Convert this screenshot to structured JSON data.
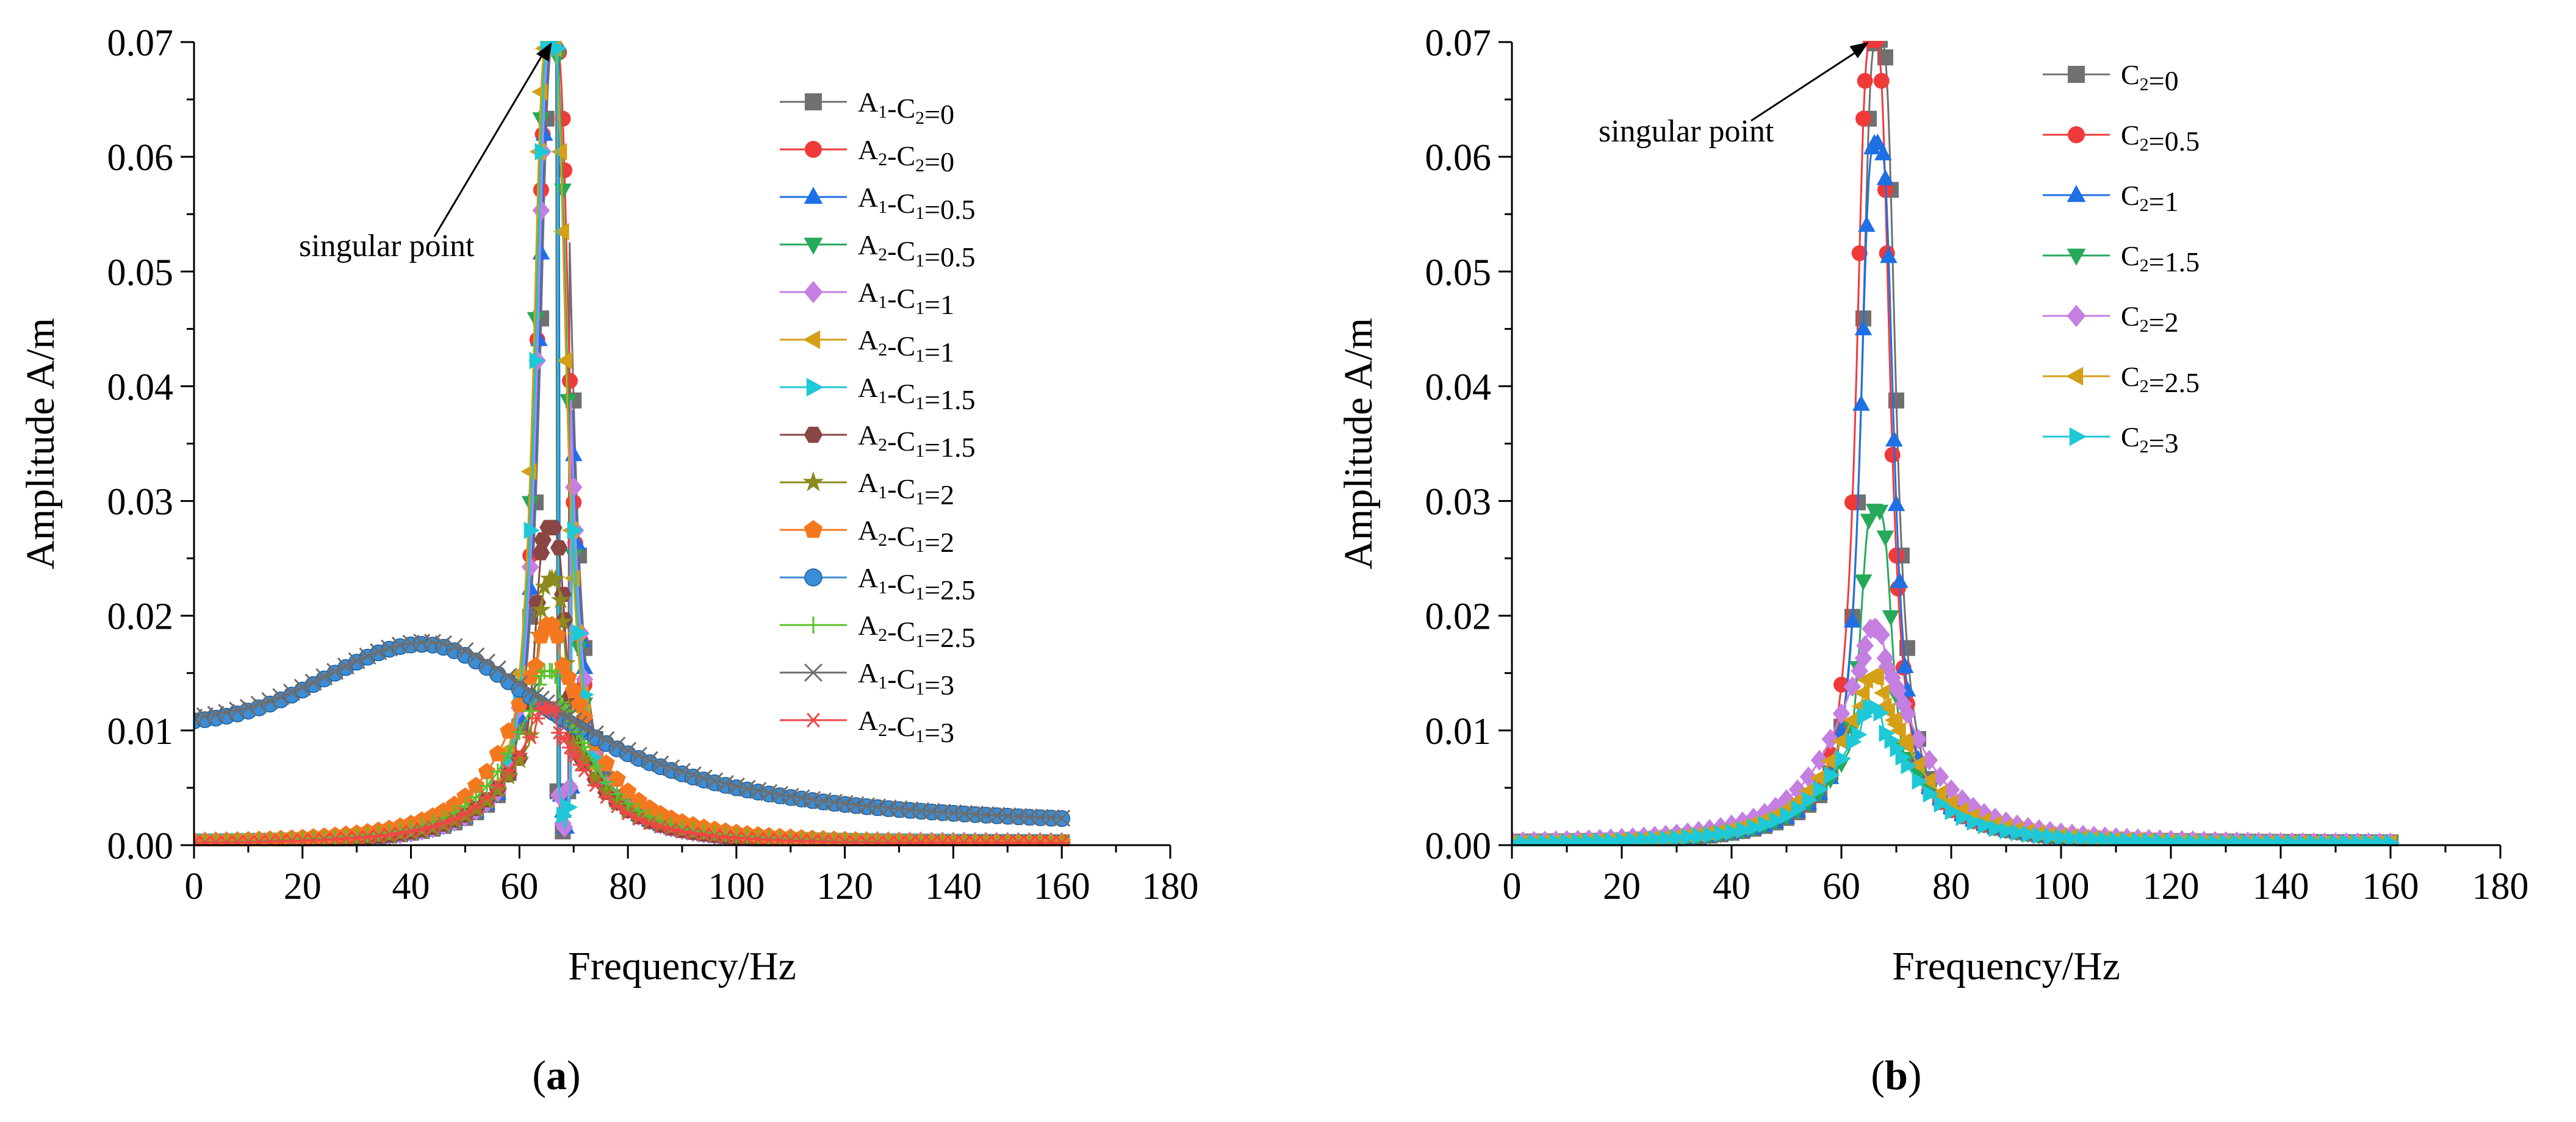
{
  "chart_data": [
    {
      "panel_label": "a",
      "type": "line",
      "xlabel": "Frequency/Hz",
      "ylabel": "Amplitude A/m",
      "xlim": [
        0,
        180
      ],
      "ylim": [
        0,
        0.07
      ],
      "xticks": [
        "0",
        "20",
        "40",
        "60",
        "80",
        "100",
        "120",
        "140",
        "160",
        "180"
      ],
      "yticks": [
        "0.00",
        "0.01",
        "0.02",
        "0.03",
        "0.04",
        "0.05",
        "0.06",
        "0.07"
      ],
      "annotation": {
        "text": "singular point",
        "arrow_to": [
          66,
          0.07
        ]
      },
      "legend_location": "upper-right",
      "series": [
        {
          "name": "A1-C2=0",
          "legend": {
            "p": "A",
            "ps": "1",
            "m": "-C",
            "ms": "2",
            "s": "=0"
          },
          "color": "#707070",
          "marker": "square",
          "kind": "res",
          "res_f": 66.8,
          "peak": 0.07,
          "anti_f": 68.0
        },
        {
          "name": "A2-C2=0",
          "legend": {
            "p": "A",
            "ps": "2",
            "m": "-C",
            "ms": "2",
            "s": "=0"
          },
          "color": "#f03a3a",
          "marker": "circle",
          "kind": "res",
          "res_f": 66.2,
          "peak": 0.07
        },
        {
          "name": "A1-C1=0.5",
          "legend": {
            "p": "A",
            "ps": "1",
            "m": "-C",
            "ms": "1",
            "s": "=0.5"
          },
          "color": "#1f6fe5",
          "marker": "triangle-up",
          "kind": "res",
          "res_f": 66.5,
          "peak": 0.07,
          "anti_f": 68.5
        },
        {
          "name": "A2-C1=0.5",
          "legend": {
            "p": "A",
            "ps": "2",
            "m": "-C",
            "ms": "1",
            "s": "=0.5"
          },
          "color": "#26a95a",
          "marker": "triangle-down",
          "kind": "res",
          "res_f": 65.8,
          "peak": 0.07
        },
        {
          "name": "A1-C1=1",
          "legend": {
            "p": "A",
            "ps": "1",
            "m": "-C",
            "ms": "1",
            "s": "=1"
          },
          "color": "#c57fe0",
          "marker": "diamond",
          "kind": "res",
          "res_f": 66.3,
          "peak": 0.07,
          "anti_f": 68.2
        },
        {
          "name": "A2-C1=1",
          "legend": {
            "p": "A",
            "ps": "2",
            "m": "-C",
            "ms": "1",
            "s": "=1"
          },
          "color": "#d4a017",
          "marker": "triangle-left",
          "kind": "res",
          "res_f": 65.6,
          "peak": 0.07
        },
        {
          "name": "A1-C1=1.5",
          "legend": {
            "p": "A",
            "ps": "1",
            "m": "-C",
            "ms": "1",
            "s": "=1.5"
          },
          "color": "#1ec8d6",
          "marker": "triangle-right",
          "kind": "res",
          "res_f": 66.0,
          "peak": 0.07,
          "anti_f": 68.4
        },
        {
          "name": "A2-C1=1.5",
          "legend": {
            "p": "A",
            "ps": "2",
            "m": "-C",
            "ms": "1",
            "s": "=1.5"
          },
          "color": "#8a4545",
          "marker": "hexagon",
          "kind": "res",
          "res_f": 65.7,
          "peak": 0.0275
        },
        {
          "name": "A1-C1=2",
          "legend": {
            "p": "A",
            "ps": "1",
            "m": "-C",
            "ms": "1",
            "s": "=2"
          },
          "color": "#8b8b1e",
          "marker": "star",
          "kind": "res",
          "res_f": 65.9,
          "peak": 0.023
        },
        {
          "name": "A2-C1=2",
          "legend": {
            "p": "A",
            "ps": "2",
            "m": "-C",
            "ms": "1",
            "s": "=2"
          },
          "color": "#f5781f",
          "marker": "pentagon",
          "kind": "res",
          "res_f": 65.5,
          "peak": 0.019
        },
        {
          "name": "A1-C1=2.5",
          "legend": {
            "p": "A",
            "ps": "1",
            "m": "-C",
            "ms": "1",
            "s": "=2.5"
          },
          "color": "#3a8dd6",
          "marker": "sphere",
          "kind": "broad",
          "base": 0.0105,
          "peak": 0.0175,
          "fpk": 42,
          "w": 24,
          "tail": 0.0012
        },
        {
          "name": "A2-C1=2.5",
          "legend": {
            "p": "A",
            "ps": "2",
            "m": "-C",
            "ms": "1",
            "s": "=2.5"
          },
          "color": "#59c02a",
          "marker": "plus",
          "kind": "res",
          "res_f": 65.3,
          "peak": 0.015
        },
        {
          "name": "A1-C1=3",
          "legend": {
            "p": "A",
            "ps": "1",
            "m": "-C",
            "ms": "1",
            "s": "=3"
          },
          "color": "#6e6e6e",
          "marker": "cross",
          "kind": "broad",
          "base": 0.0108,
          "peak": 0.0177,
          "fpk": 43,
          "w": 25,
          "tail": 0.0012
        },
        {
          "name": "A2-C1=3",
          "legend": {
            "p": "A",
            "ps": "2",
            "m": "-C",
            "ms": "1",
            "s": "=3"
          },
          "color": "#f04646",
          "marker": "asterisk",
          "kind": "res",
          "res_f": 65.0,
          "peak": 0.0118
        }
      ]
    },
    {
      "panel_label": "b",
      "type": "line",
      "xlabel": "Frequency/Hz",
      "ylabel": "Amplitude A/m",
      "xlim": [
        0,
        180
      ],
      "ylim": [
        0,
        0.07
      ],
      "xticks": [
        "0",
        "20",
        "40",
        "60",
        "80",
        "100",
        "120",
        "140",
        "160",
        "180"
      ],
      "yticks": [
        "0.00",
        "0.01",
        "0.02",
        "0.03",
        "0.04",
        "0.05",
        "0.06",
        "0.07"
      ],
      "annotation": {
        "text": "singular point",
        "arrow_to": [
          65,
          0.07
        ]
      },
      "legend_location": "upper-right",
      "series": [
        {
          "name": "C2=0",
          "legend": {
            "p": "",
            "ps": "",
            "m": "C",
            "ms": "2",
            "s": "=0"
          },
          "color": "#707070",
          "marker": "square",
          "kind": "res",
          "res_f": 66.8,
          "peak": 0.07
        },
        {
          "name": "C2=0.5",
          "legend": {
            "p": "",
            "ps": "",
            "m": "C",
            "ms": "2",
            "s": "=0.5"
          },
          "color": "#f03a3a",
          "marker": "circle",
          "kind": "res",
          "res_f": 65.8,
          "peak": 0.07
        },
        {
          "name": "C2=1",
          "legend": {
            "p": "",
            "ps": "",
            "m": "C",
            "ms": "2",
            "s": "=1"
          },
          "color": "#1f6fe5",
          "marker": "triangle-up",
          "kind": "res",
          "res_f": 66.5,
          "peak": 0.061
        },
        {
          "name": "C2=1.5",
          "legend": {
            "p": "",
            "ps": "",
            "m": "C",
            "ms": "2",
            "s": "=1.5"
          },
          "color": "#26a95a",
          "marker": "triangle-down",
          "kind": "res",
          "res_f": 66.3,
          "peak": 0.029
        },
        {
          "name": "C2=2",
          "legend": {
            "p": "",
            "ps": "",
            "m": "C",
            "ms": "2",
            "s": "=2"
          },
          "color": "#c57fe0",
          "marker": "diamond",
          "kind": "res",
          "res_f": 66.0,
          "peak": 0.0187
        },
        {
          "name": "C2=2.5",
          "legend": {
            "p": "",
            "ps": "",
            "m": "C",
            "ms": "2",
            "s": "=2.5"
          },
          "color": "#d4a017",
          "marker": "triangle-left",
          "kind": "res",
          "res_f": 65.8,
          "peak": 0.0145
        },
        {
          "name": "C2=3",
          "legend": {
            "p": "",
            "ps": "",
            "m": "C",
            "ms": "2",
            "s": "=3"
          },
          "color": "#1ec8d6",
          "marker": "triangle-right",
          "kind": "res",
          "res_f": 65.6,
          "peak": 0.0118
        }
      ]
    }
  ]
}
